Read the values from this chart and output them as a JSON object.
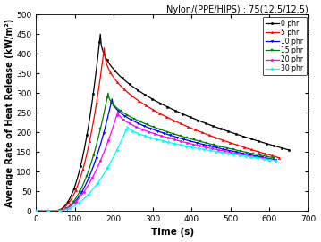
{
  "title": "Nylon/(PPE/HIPS) : 75(12.5/12.5)",
  "xlabel": "Time (s)",
  "ylabel": "Average Rate of Heat Release (kW/m²)",
  "xlim": [
    0,
    700
  ],
  "ylim": [
    0,
    500
  ],
  "xticks": [
    0,
    100,
    200,
    300,
    400,
    500,
    600,
    700
  ],
  "yticks": [
    0,
    50,
    100,
    150,
    200,
    250,
    300,
    350,
    400,
    450,
    500
  ],
  "series": [
    {
      "label": "0 phr",
      "color": "black",
      "marker": "o",
      "marker_size": 1.8,
      "peak_x": 165,
      "peak_y": 450,
      "start_x": 45,
      "end_x": 650,
      "end_y": 155,
      "rise_exp": 2.5,
      "decay_exp": 0.45
    },
    {
      "label": "5 phr",
      "color": "red",
      "marker": "^",
      "marker_size": 1.8,
      "peak_x": 175,
      "peak_y": 415,
      "start_x": 45,
      "end_x": 625,
      "end_y": 135,
      "rise_exp": 2.5,
      "decay_exp": 0.45
    },
    {
      "label": "10 phr",
      "color": "blue",
      "marker": "v",
      "marker_size": 1.8,
      "peak_x": 195,
      "peak_y": 285,
      "start_x": 55,
      "end_x": 615,
      "end_y": 130,
      "rise_exp": 2.2,
      "decay_exp": 0.5
    },
    {
      "label": "15 phr",
      "color": "green",
      "marker": "s",
      "marker_size": 1.8,
      "peak_x": 185,
      "peak_y": 300,
      "start_x": 55,
      "end_x": 610,
      "end_y": 135,
      "rise_exp": 2.2,
      "decay_exp": 0.5
    },
    {
      "label": "20 phr",
      "color": "magenta",
      "marker": "o",
      "marker_size": 1.8,
      "peak_x": 210,
      "peak_y": 252,
      "start_x": 55,
      "end_x": 615,
      "end_y": 128,
      "rise_exp": 2.0,
      "decay_exp": 0.55
    },
    {
      "label": "30 phr",
      "color": "cyan",
      "marker": "D",
      "marker_size": 1.8,
      "peak_x": 235,
      "peak_y": 215,
      "start_x": 55,
      "end_x": 615,
      "end_y": 128,
      "rise_exp": 2.0,
      "decay_exp": 0.6
    }
  ],
  "legend_loc": "upper right",
  "title_fontsize": 7,
  "label_fontsize": 7.5,
  "tick_fontsize": 6.5,
  "linewidth": 0.9,
  "marker_every": 8
}
